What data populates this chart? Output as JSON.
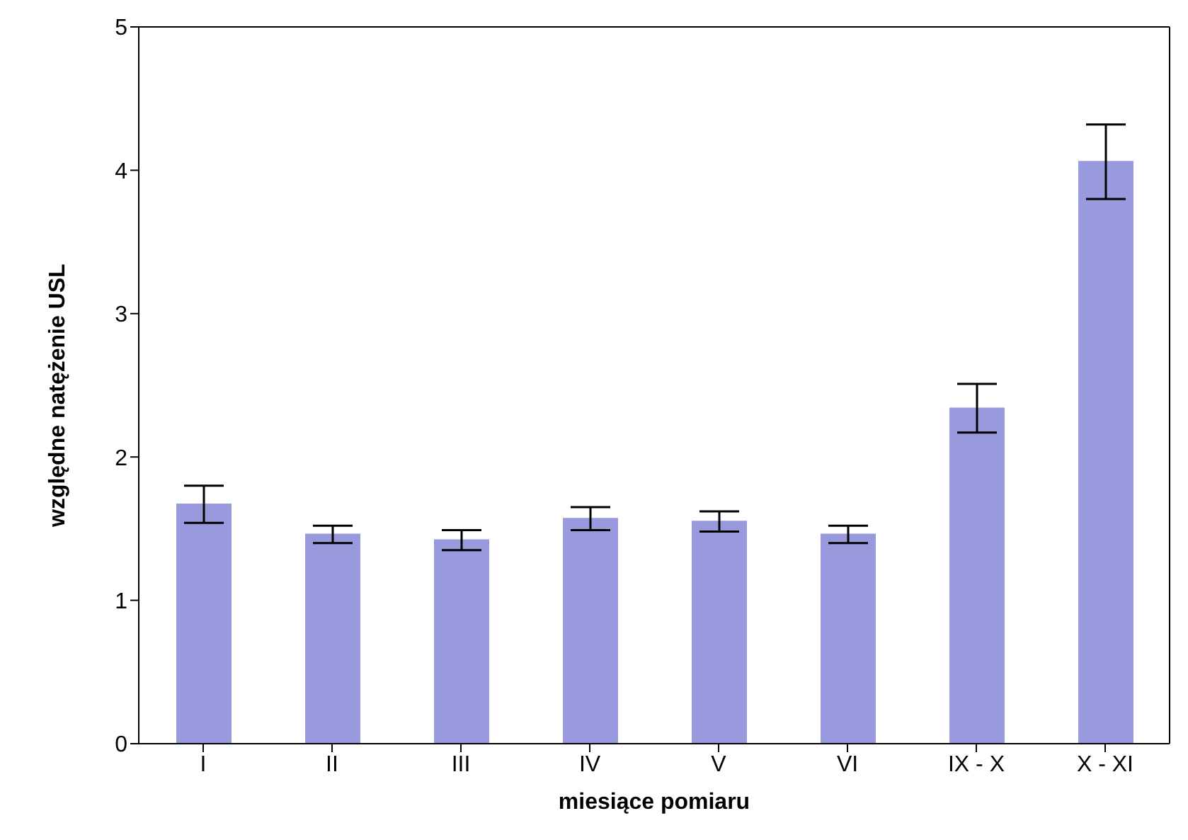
{
  "chart_data": {
    "type": "bar",
    "xlabel": "miesiące pomiaru",
    "ylabel": "względne natężenie USL",
    "categories": [
      "I",
      "II",
      "III",
      "IV",
      "V",
      "VI",
      "IX - X",
      "X - XI"
    ],
    "values": [
      1.67,
      1.46,
      1.42,
      1.57,
      1.55,
      1.46,
      2.34,
      4.06
    ],
    "errors": [
      0.13,
      0.06,
      0.07,
      0.08,
      0.07,
      0.06,
      0.17,
      0.26
    ],
    "color": "#9999dd",
    "ylim": [
      0,
      5
    ],
    "yticks": [
      0,
      1,
      2,
      3,
      4,
      5
    ],
    "grid": false,
    "legend": false
  }
}
